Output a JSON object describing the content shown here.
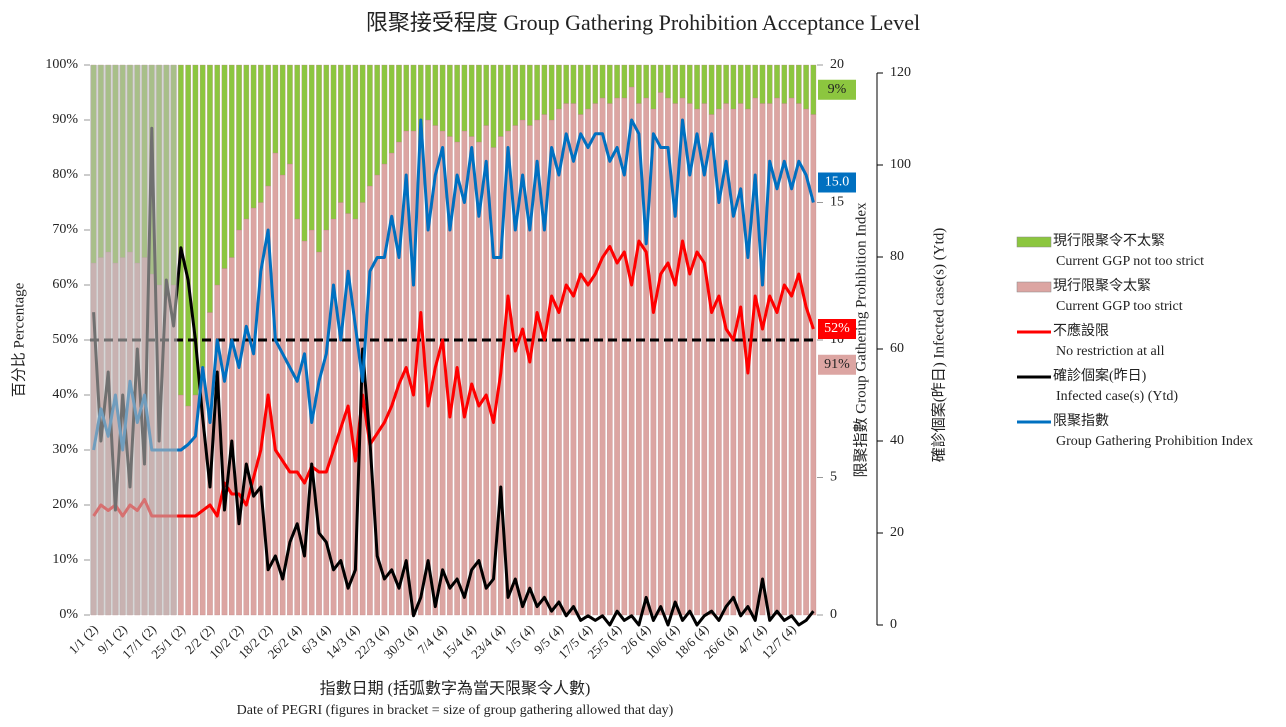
{
  "chart_data": {
    "type": "bar",
    "title": "限聚接受程度 Group Gathering Prohibition Acceptance Level",
    "x_title": "指數日期 (括弧數字為當天限聚令人數)",
    "x_title_en": "Date of PEGRI (figures in bracket = size of group gathering allowed that day)",
    "y_title": "百分比 Percentage",
    "y2_title": "限聚指數 Group Gathering Prohibition Index",
    "y3_title": "確診個案(昨日) Infected case(s) (Ytd)",
    "categories": [
      "1/1 (2)",
      null,
      null,
      null,
      "9/1 (2)",
      null,
      null,
      null,
      "17/1 (2)",
      null,
      null,
      null,
      "25/1 (2)",
      null,
      null,
      null,
      "2/2 (2)",
      null,
      null,
      null,
      "10/2 (2)",
      null,
      null,
      null,
      "18/2 (2)",
      null,
      null,
      null,
      "26/2 (4)",
      null,
      null,
      null,
      "6/3 (4)",
      null,
      null,
      null,
      "14/3 (4)",
      null,
      null,
      null,
      "22/3 (4)",
      null,
      null,
      null,
      "30/3 (4)",
      null,
      null,
      null,
      "7/4 (4)",
      null,
      null,
      null,
      "15/4 (4)",
      null,
      null,
      null,
      "23/4 (4)",
      null,
      null,
      null,
      "1/5 (4)",
      null,
      null,
      null,
      "9/5 (4)",
      null,
      null,
      null,
      "17/5 (4)",
      null,
      null,
      null,
      "25/5 (4)",
      null,
      null,
      null,
      "2/6 (4)",
      null,
      null,
      null,
      "10/6 (4)",
      null,
      null,
      null,
      "18/6 (4)",
      null,
      null,
      null,
      "26/6 (4)",
      null,
      null,
      null,
      "4/7 (4)",
      null,
      null,
      null,
      "12/7 (4)",
      null,
      null,
      null
    ],
    "highlight_end": "25/1 (2)",
    "ylim": [
      0,
      100
    ],
    "yticks": [
      {
        "value": 0,
        "label": "0%"
      },
      {
        "value": 10,
        "label": "10%"
      },
      {
        "value": 20,
        "label": "20%"
      },
      {
        "value": 30,
        "label": "30%"
      },
      {
        "value": 40,
        "label": "40%"
      },
      {
        "value": 50,
        "label": "50%"
      },
      {
        "value": 60,
        "label": "60%"
      },
      {
        "value": 70,
        "label": "70%"
      },
      {
        "value": 80,
        "label": "80%"
      },
      {
        "value": 90,
        "label": "90%"
      },
      {
        "value": 100,
        "label": "100%"
      }
    ],
    "y2lim": [
      0,
      20
    ],
    "y2ticks": [
      0,
      5,
      10,
      15,
      20
    ],
    "y3lim": [
      0,
      120
    ],
    "y3ticks": [
      0,
      20,
      40,
      60,
      80,
      100,
      120
    ],
    "reference_line": 50,
    "series": [
      {
        "name": "現行限聚令不太緊",
        "name_en": "Current GGP not too strict",
        "type": "bar",
        "color": "#8cc63f",
        "end_label": "9%",
        "values": [
          36,
          35,
          34,
          36,
          35,
          34,
          36,
          35,
          38,
          40,
          42,
          40,
          60,
          62,
          60,
          55,
          45,
          40,
          37,
          35,
          30,
          28,
          26,
          25,
          22,
          16,
          20,
          18,
          28,
          32,
          30,
          34,
          30,
          28,
          25,
          27,
          28,
          25,
          22,
          20,
          18,
          16,
          14,
          12,
          12,
          14,
          10,
          11,
          12,
          13,
          14,
          12,
          13,
          14,
          11,
          15,
          13,
          12,
          11,
          10,
          11,
          10,
          9,
          10,
          8,
          7,
          7,
          9,
          8,
          7,
          6,
          7,
          6,
          6,
          4,
          7,
          6,
          8,
          5,
          6,
          7,
          6,
          7,
          8,
          7,
          9,
          8,
          7,
          8,
          7,
          8,
          6,
          7,
          7,
          6,
          7,
          6,
          7,
          8,
          9
        ]
      },
      {
        "name": "現行限聚令太緊",
        "name_en": "Current GGP too strict",
        "type": "bar",
        "color": "#dca5a2",
        "end_label": "91%",
        "values": [
          64,
          65,
          66,
          64,
          65,
          66,
          64,
          65,
          62,
          60,
          58,
          60,
          40,
          38,
          40,
          45,
          55,
          60,
          63,
          65,
          70,
          72,
          74,
          75,
          78,
          84,
          80,
          82,
          72,
          68,
          70,
          66,
          70,
          72,
          75,
          73,
          72,
          75,
          78,
          80,
          82,
          84,
          86,
          88,
          88,
          86,
          90,
          89,
          88,
          87,
          86,
          88,
          87,
          86,
          89,
          85,
          87,
          88,
          89,
          90,
          89,
          90,
          91,
          90,
          92,
          93,
          93,
          91,
          92,
          93,
          94,
          93,
          94,
          94,
          96,
          93,
          94,
          92,
          95,
          94,
          93,
          94,
          93,
          92,
          93,
          91,
          92,
          93,
          92,
          93,
          92,
          94,
          93,
          93,
          94,
          93,
          94,
          93,
          92,
          91
        ]
      },
      {
        "name": "不應設限",
        "name_en": "No restriction at all",
        "type": "line",
        "axis": "y",
        "color": "#ff0000",
        "end_label": "52%",
        "values": [
          18,
          20,
          19,
          20,
          18,
          20,
          19,
          21,
          18,
          18,
          18,
          18,
          18,
          18,
          18,
          19,
          20,
          18,
          24,
          22,
          22,
          20,
          25,
          30,
          40,
          30,
          28,
          26,
          26,
          24,
          27,
          26,
          26,
          30,
          34,
          38,
          28,
          40,
          31,
          33,
          35,
          38,
          42,
          45,
          40,
          55,
          38,
          45,
          50,
          36,
          45,
          36,
          42,
          38,
          40,
          35,
          44,
          58,
          48,
          52,
          46,
          55,
          50,
          58,
          55,
          60,
          58,
          62,
          60,
          62,
          65,
          67,
          64,
          66,
          60,
          68,
          66,
          55,
          62,
          64,
          60,
          68,
          62,
          66,
          64,
          55,
          58,
          52,
          50,
          56,
          44,
          58,
          52,
          58,
          55,
          60,
          58,
          62,
          56,
          52
        ]
      },
      {
        "name": "確診個案(昨日)",
        "name_en": "Infected case(s) (Ytd)",
        "type": "line",
        "axis": "y3",
        "color": "#000000",
        "values": [
          68,
          40,
          55,
          25,
          50,
          30,
          60,
          35,
          108,
          40,
          75,
          65,
          82,
          75,
          62,
          45,
          30,
          55,
          25,
          40,
          22,
          35,
          28,
          30,
          12,
          15,
          10,
          18,
          22,
          15,
          35,
          20,
          18,
          12,
          14,
          8,
          12,
          60,
          40,
          15,
          10,
          12,
          8,
          14,
          2,
          6,
          14,
          4,
          12,
          8,
          10,
          6,
          12,
          14,
          8,
          10,
          30,
          6,
          10,
          4,
          8,
          4,
          6,
          3,
          5,
          2,
          4,
          1,
          2,
          1,
          2,
          0,
          3,
          1,
          2,
          0,
          6,
          1,
          4,
          0,
          5,
          1,
          3,
          0,
          2,
          3,
          1,
          4,
          6,
          2,
          4,
          1,
          10,
          1,
          3,
          1,
          2,
          0,
          1,
          3
        ]
      },
      {
        "name": "限聚指數",
        "name_en": "Group Gathering Prohibition Index",
        "type": "line",
        "axis": "y2",
        "color": "#0070c0",
        "end_label": "15.0",
        "values": [
          6,
          7.5,
          6.5,
          8,
          6,
          8.5,
          7,
          8,
          6,
          6,
          6,
          6,
          6,
          6.2,
          6.5,
          9,
          7,
          10,
          8.5,
          10,
          9,
          10.5,
          9.5,
          12.5,
          14,
          10,
          9.5,
          9,
          8.5,
          9.5,
          7,
          8.5,
          9.5,
          12,
          10,
          12.5,
          10.5,
          8.5,
          12.5,
          13,
          13,
          14.5,
          13,
          16,
          12,
          18,
          14,
          16,
          17,
          14,
          16,
          15,
          17,
          14.5,
          16.5,
          13,
          13,
          17,
          14,
          16,
          14,
          16.5,
          14,
          17,
          16,
          17.5,
          16.5,
          17.5,
          17,
          17.5,
          17.5,
          16.5,
          17,
          16,
          18,
          17.5,
          13.5,
          17.5,
          17,
          17,
          14.5,
          18,
          16,
          17.5,
          16,
          17.5,
          15,
          16.5,
          14.5,
          15.5,
          13,
          16,
          12,
          16.5,
          15.5,
          16.5,
          15.5,
          16.5,
          16,
          15
        ]
      }
    ]
  }
}
